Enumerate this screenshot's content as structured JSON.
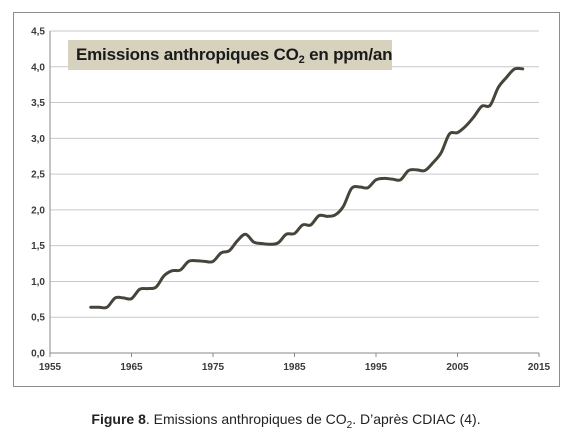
{
  "chart_data": {
    "type": "line",
    "title_parts": [
      "Emissions anthropiques CO",
      "2",
      " en  ppm/an"
    ],
    "xlim": [
      1955,
      2015
    ],
    "ylim": [
      0,
      4.5
    ],
    "x_ticks": [
      "1955",
      "1965",
      "1975",
      "1985",
      "1995",
      "2005",
      "2015"
    ],
    "y_ticks": [
      "0,0",
      "0,5",
      "1,0",
      "1,5",
      "2,0",
      "2,5",
      "3,0",
      "3,5",
      "4,0",
      "4,5"
    ],
    "grid": "horizontal",
    "line_color": "#47443a",
    "x": [
      1960,
      1961,
      1962,
      1963,
      1964,
      1965,
      1966,
      1967,
      1968,
      1969,
      1970,
      1971,
      1972,
      1973,
      1974,
      1975,
      1976,
      1977,
      1978,
      1979,
      1980,
      1981,
      1982,
      1983,
      1984,
      1985,
      1986,
      1987,
      1988,
      1989,
      1990,
      1991,
      1992,
      1993,
      1994,
      1995,
      1996,
      1997,
      1998,
      1999,
      2000,
      2001,
      2002,
      2003,
      2004,
      2005,
      2006,
      2007,
      2008,
      2009,
      2010,
      2011,
      2012,
      2013
    ],
    "y": [
      0.64,
      0.64,
      0.64,
      0.77,
      0.77,
      0.76,
      0.89,
      0.9,
      0.92,
      1.08,
      1.15,
      1.16,
      1.28,
      1.29,
      1.28,
      1.28,
      1.4,
      1.43,
      1.57,
      1.66,
      1.55,
      1.53,
      1.52,
      1.54,
      1.66,
      1.67,
      1.79,
      1.79,
      1.92,
      1.91,
      1.93,
      2.05,
      2.3,
      2.32,
      2.31,
      2.42,
      2.44,
      2.43,
      2.42,
      2.55,
      2.56,
      2.55,
      2.66,
      2.8,
      3.06,
      3.08,
      3.17,
      3.3,
      3.45,
      3.46,
      3.71,
      3.85,
      3.97,
      3.97
    ]
  },
  "caption": {
    "figure_label": "Figure 8",
    "text_before_sub": ". Emissions anthropiques de CO",
    "sub": "2",
    "text_after_sub": ". D’après CDIAC (4)."
  }
}
